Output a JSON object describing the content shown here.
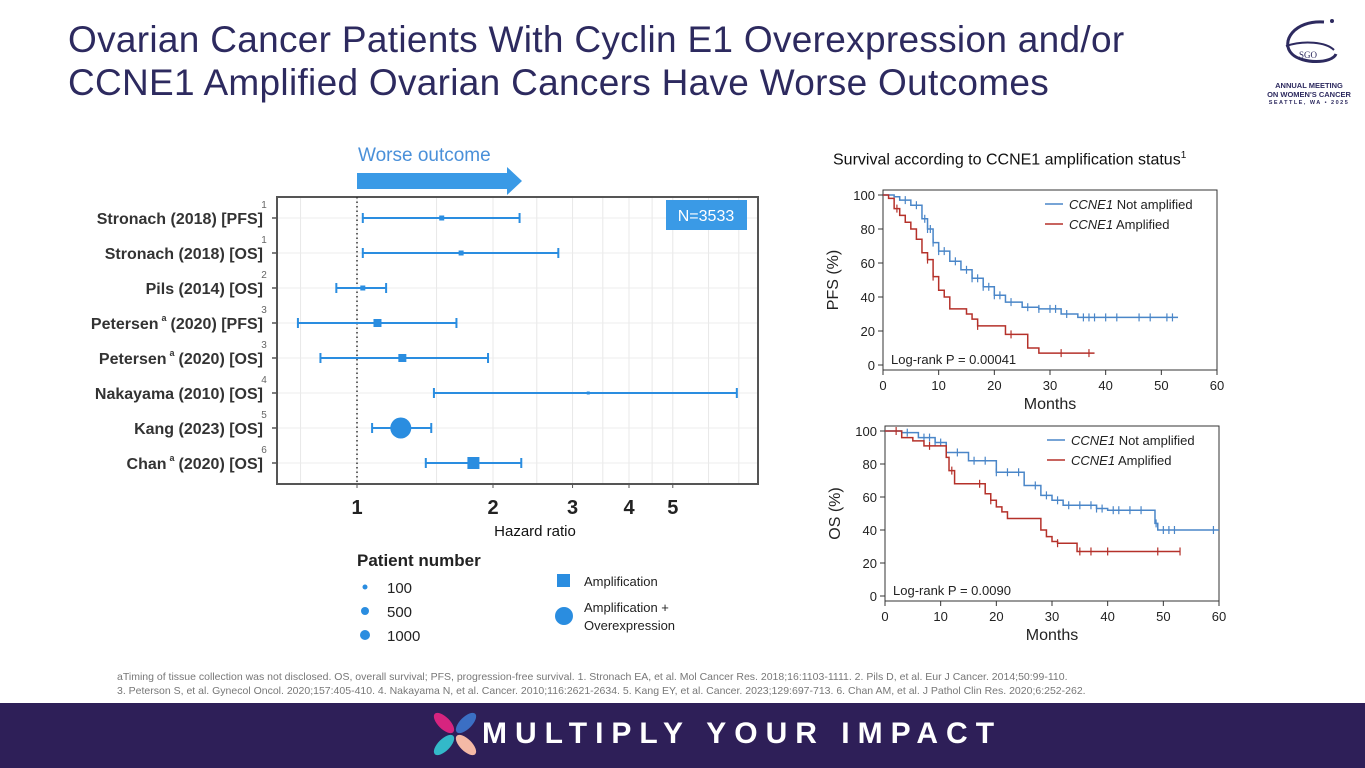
{
  "slide": {
    "title_line1": "Ovarian Cancer Patients With Cyclin E1 Overexpression and/or",
    "title_line2": "CCNE1 Amplified Ovarian Cancers Have Worse Outcomes",
    "logo": {
      "text": "SGO",
      "line1": "ANNUAL MEETING",
      "line2": "ON WOMEN'S CANCER",
      "line3": "SEATTLE, WA • 2025"
    },
    "footnote_line1": "aTiming of tissue collection was not disclosed. OS, overall survival; PFS, progression-free survival. 1. Stronach EA, et al. Mol Cancer Res. 2018;16:1103-1111. 2. Pils D, et al. Eur J Cancer. 2014;50:99-110.",
    "footnote_line2": "3. Peterson S, et al. Gynecol Oncol. 2020;157:405-410. 4. Nakayama N, et al. Cancer. 2010;116:2621-2634. 5. Kang EY, et al. Cancer. 2023;129:697-713. 6. Chan AM, et al. J Pathol Clin Res. 2020;6:252-262.",
    "footer_slogan": "MULTIPLY YOUR IMPACT",
    "colors": {
      "title": "#2d2a5f",
      "forest": "#2a8de0",
      "blue_curve": "#4a86c8",
      "red_curve": "#b5312a",
      "footer_bg": "#2e1f58"
    }
  },
  "chart_data": [
    {
      "type": "scatter",
      "subtype": "forest",
      "title": "Worse outcome",
      "xlabel": "Hazard ratio",
      "xscale": "log",
      "xlim": [
        0.68,
        7.5
      ],
      "xticks": [
        1,
        2,
        3,
        4,
        5
      ],
      "reference_line": 1,
      "annotation": "N=3533",
      "grid": true,
      "rows": [
        {
          "label": "Stronach (2018) [PFS]",
          "sup": "",
          "ref": "1",
          "hr": 1.54,
          "lo": 1.03,
          "hi": 2.29,
          "marker": "square",
          "size": 1
        },
        {
          "label": "Stronach (2018) [OS]",
          "sup": "",
          "ref": "1",
          "hr": 1.7,
          "lo": 1.03,
          "hi": 2.79,
          "marker": "square",
          "size": 1
        },
        {
          "label": "Pils (2014) [OS]",
          "sup": "",
          "ref": "2",
          "hr": 1.03,
          "lo": 0.9,
          "hi": 1.16,
          "marker": "square",
          "size": 1
        },
        {
          "label": "Petersen",
          "tail": "(2020) [PFS]",
          "sup": "a",
          "ref": "3",
          "hr": 1.11,
          "lo": 0.74,
          "hi": 1.66,
          "marker": "square",
          "size": 2
        },
        {
          "label": "Petersen",
          "tail": "(2020) [OS]",
          "sup": "a",
          "ref": "3",
          "hr": 1.26,
          "lo": 0.83,
          "hi": 1.95,
          "marker": "square",
          "size": 2
        },
        {
          "label": "Nakayama (2010) [OS]",
          "sup": "",
          "ref": "4",
          "hr": 3.25,
          "lo": 1.48,
          "hi": 6.93,
          "marker": "square",
          "size": 0
        },
        {
          "label": "Kang (2023) [OS]",
          "sup": "",
          "ref": "5",
          "hr": 1.25,
          "lo": 1.08,
          "hi": 1.46,
          "marker": "circle",
          "size": 3
        },
        {
          "label": "Chan",
          "tail": "(2020) [OS]",
          "sup": "a",
          "ref": "6",
          "hr": 1.81,
          "lo": 1.42,
          "hi": 2.31,
          "marker": "square",
          "size": 3
        }
      ],
      "legend": {
        "title": "Patient number",
        "sizes": [
          "100",
          "500",
          "1000"
        ],
        "types": [
          "Amplification",
          "Amplification +",
          "Overexpression"
        ]
      }
    },
    {
      "type": "line",
      "subtype": "kaplan-meier",
      "title": "Survival according to CCNE1 amplification status",
      "title_sup": "1",
      "ylabel": "PFS (%)",
      "xlabel": "Months",
      "xlim": [
        0,
        60
      ],
      "ylim": [
        0,
        100
      ],
      "xticks": [
        0,
        10,
        20,
        30,
        40,
        50,
        60
      ],
      "yticks": [
        0,
        20,
        40,
        60,
        80,
        100
      ],
      "annotation": "Log-rank P = 0.00041",
      "series": [
        {
          "name": "CCNE1 Not amplified",
          "italic": "CCNE1",
          "rest": " Not amplified",
          "color": "#4a86c8",
          "points": [
            [
              0,
              100
            ],
            [
              2,
              99
            ],
            [
              3,
              97
            ],
            [
              5,
              94
            ],
            [
              7,
              86
            ],
            [
              8,
              80
            ],
            [
              9,
              72
            ],
            [
              10,
              67
            ],
            [
              12,
              61
            ],
            [
              14,
              56
            ],
            [
              16,
              51
            ],
            [
              18,
              46
            ],
            [
              20,
              41
            ],
            [
              22,
              37
            ],
            [
              25,
              34
            ],
            [
              28,
              33
            ],
            [
              32,
              30
            ],
            [
              35,
              28
            ],
            [
              53,
              28
            ]
          ],
          "censors": [
            4,
            6,
            7.5,
            8,
            8.5,
            9,
            10,
            11,
            13,
            15,
            16,
            17,
            18,
            19,
            20,
            21,
            23,
            26,
            28,
            30,
            31,
            33,
            36,
            37,
            38,
            40,
            42,
            46,
            48,
            51,
            52
          ]
        },
        {
          "name": "CCNE1 Amplified",
          "italic": "CCNE1",
          "rest": " Amplified",
          "color": "#b5312a",
          "points": [
            [
              0,
              100
            ],
            [
              1,
              98
            ],
            [
              2,
              92
            ],
            [
              3,
              88
            ],
            [
              4,
              84
            ],
            [
              5,
              80
            ],
            [
              6,
              74
            ],
            [
              7,
              66
            ],
            [
              8,
              62
            ],
            [
              9,
              52
            ],
            [
              10,
              44
            ],
            [
              11,
              40
            ],
            [
              12,
              33
            ],
            [
              15,
              30
            ],
            [
              16,
              27
            ],
            [
              17,
              23
            ],
            [
              22,
              18
            ],
            [
              26,
              10
            ],
            [
              28,
              7
            ],
            [
              38,
              7
            ]
          ],
          "censors": [
            2.5,
            8,
            9,
            17,
            23,
            32,
            37
          ]
        }
      ]
    },
    {
      "type": "line",
      "subtype": "kaplan-meier",
      "ylabel": "OS (%)",
      "xlabel": "Months",
      "xlim": [
        0,
        60
      ],
      "ylim": [
        0,
        100
      ],
      "xticks": [
        0,
        10,
        20,
        30,
        40,
        50,
        60
      ],
      "yticks": [
        0,
        20,
        40,
        60,
        80,
        100
      ],
      "annotation": "Log-rank P = 0.0090",
      "series": [
        {
          "name": "CCNE1 Not amplified",
          "italic": "CCNE1",
          "rest": " Not amplified",
          "color": "#4a86c8",
          "points": [
            [
              0,
              100
            ],
            [
              3,
              99
            ],
            [
              6,
              96
            ],
            [
              9,
              93
            ],
            [
              11,
              87
            ],
            [
              15,
              82
            ],
            [
              20,
              75
            ],
            [
              25,
              67
            ],
            [
              28,
              61
            ],
            [
              30,
              58
            ],
            [
              32,
              55
            ],
            [
              38,
              53
            ],
            [
              40,
              52
            ],
            [
              48.5,
              52
            ],
            [
              48.5,
              44
            ],
            [
              49,
              40
            ],
            [
              60,
              40
            ]
          ],
          "censors": [
            4,
            7,
            8,
            9,
            10,
            13,
            16,
            18,
            20,
            22,
            24,
            27,
            29,
            31,
            33,
            35,
            37,
            38,
            39,
            41,
            42,
            44,
            46,
            48.7,
            50,
            51,
            52,
            59
          ]
        },
        {
          "name": "CCNE1 Amplified",
          "italic": "CCNE1",
          "rest": " Amplified",
          "color": "#b5312a",
          "points": [
            [
              0,
              100
            ],
            [
              2,
              100
            ],
            [
              3,
              96
            ],
            [
              5,
              94
            ],
            [
              7,
              91
            ],
            [
              10,
              91
            ],
            [
              11,
              84
            ],
            [
              11.5,
              76
            ],
            [
              12.5,
              68
            ],
            [
              17,
              68
            ],
            [
              18,
              62
            ],
            [
              19,
              58
            ],
            [
              20,
              54
            ],
            [
              21,
              51
            ],
            [
              22,
              47
            ],
            [
              27,
              47
            ],
            [
              28,
              40
            ],
            [
              29,
              36
            ],
            [
              30,
              33
            ],
            [
              31,
              32
            ],
            [
              34,
              32
            ],
            [
              34.5,
              27
            ],
            [
              53,
              27
            ]
          ],
          "censors": [
            2,
            8,
            12,
            17,
            19,
            31,
            35,
            37,
            40,
            49,
            53
          ]
        }
      ]
    }
  ]
}
